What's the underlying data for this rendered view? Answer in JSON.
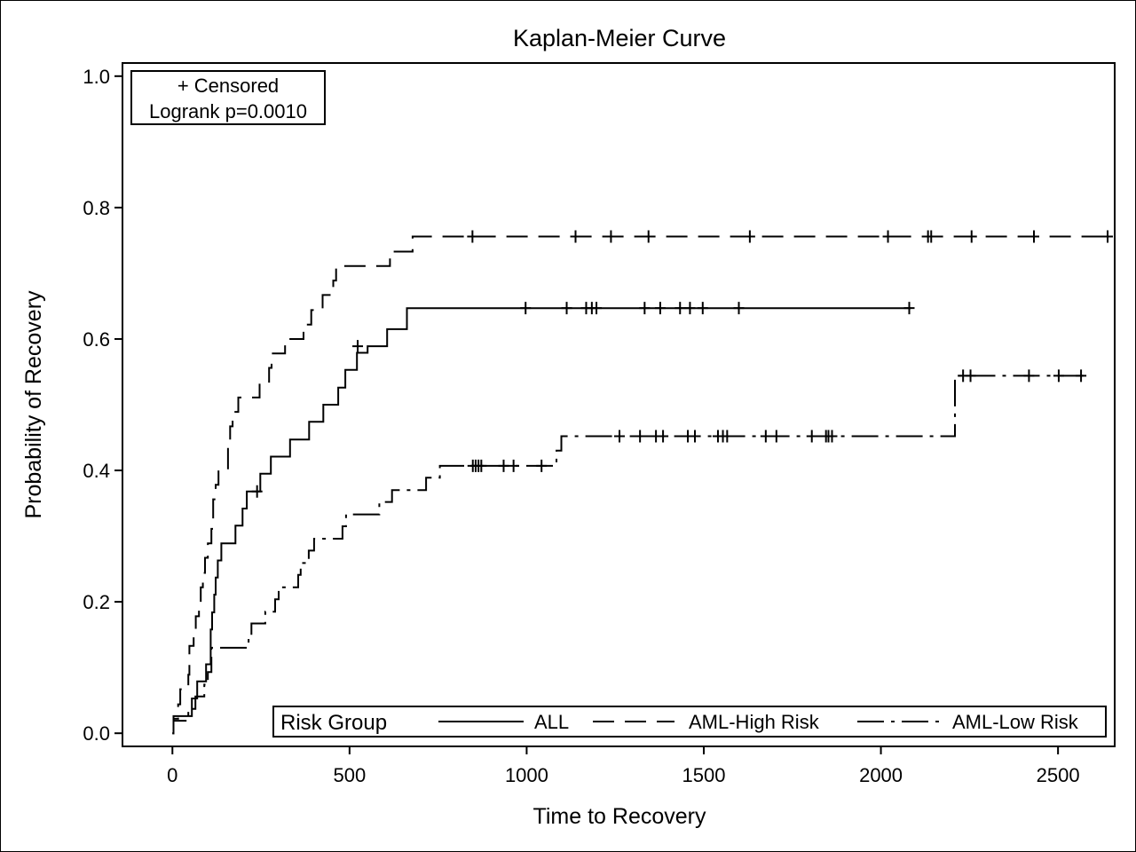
{
  "chart_data": {
    "type": "line",
    "title": "Kaplan-Meier Curve",
    "xlabel": "Time to Recovery",
    "ylabel": "Probability of Recovery",
    "xlim": [
      -141,
      2660
    ],
    "ylim": [
      -0.02,
      1.02
    ],
    "x_ticks": [
      0,
      500,
      1000,
      1500,
      2000,
      2500
    ],
    "y_ticks": [
      0.0,
      0.2,
      0.4,
      0.6,
      0.8,
      1.0
    ],
    "y_tick_labels": [
      "0.0",
      "0.2",
      "0.4",
      "0.6",
      "0.8",
      "1.0"
    ],
    "step": true,
    "grid": false,
    "inset_box": {
      "lines": [
        "+ Censored",
        "Logrank p=0.0010"
      ],
      "placement": "top-left"
    },
    "legend": {
      "title": "Risk Group",
      "placement": "bottom-right"
    },
    "series": [
      {
        "name": "ALL",
        "dash": "solid",
        "color": "#000000",
        "points": [
          [
            0,
            0
          ],
          [
            3,
            0.026
          ],
          [
            50,
            0.026
          ],
          [
            55,
            0.053
          ],
          [
            62,
            0.053
          ],
          [
            70,
            0.079
          ],
          [
            85,
            0.079
          ],
          [
            95,
            0.105
          ],
          [
            100,
            0.105
          ],
          [
            108,
            0.158
          ],
          [
            112,
            0.184
          ],
          [
            118,
            0.211
          ],
          [
            122,
            0.237
          ],
          [
            128,
            0.263
          ],
          [
            138,
            0.289
          ],
          [
            172,
            0.289
          ],
          [
            178,
            0.316
          ],
          [
            192,
            0.316
          ],
          [
            198,
            0.342
          ],
          [
            205,
            0.342
          ],
          [
            210,
            0.368
          ],
          [
            243,
            0.368
          ],
          [
            248,
            0.395
          ],
          [
            272,
            0.395
          ],
          [
            278,
            0.421
          ],
          [
            326,
            0.421
          ],
          [
            332,
            0.447
          ],
          [
            380,
            0.447
          ],
          [
            386,
            0.474
          ],
          [
            420,
            0.474
          ],
          [
            426,
            0.5
          ],
          [
            462,
            0.5
          ],
          [
            468,
            0.526
          ],
          [
            482,
            0.526
          ],
          [
            488,
            0.553
          ],
          [
            515,
            0.553
          ],
          [
            521,
            0.579
          ],
          [
            545,
            0.579
          ],
          [
            551,
            0.589
          ],
          [
            600,
            0.589
          ],
          [
            606,
            0.615
          ],
          [
            656,
            0.615
          ],
          [
            662,
            0.647
          ],
          [
            2085,
            0.647
          ]
        ],
        "censored": [
          [
            239,
            0.368
          ],
          [
            523,
            0.589
          ],
          [
            997,
            0.647
          ],
          [
            1113,
            0.647
          ],
          [
            1168,
            0.647
          ],
          [
            1184,
            0.647
          ],
          [
            1197,
            0.647
          ],
          [
            1333,
            0.647
          ],
          [
            1377,
            0.647
          ],
          [
            1433,
            0.647
          ],
          [
            1461,
            0.647
          ],
          [
            1497,
            0.647
          ],
          [
            1599,
            0.647
          ],
          [
            2080,
            0.647
          ]
        ]
      },
      {
        "name": "AML-High Risk",
        "dash": "long-dash",
        "color": "#000000",
        "points": [
          [
            0,
            0
          ],
          [
            3,
            0.022
          ],
          [
            16,
            0.044
          ],
          [
            22,
            0.067
          ],
          [
            40,
            0.067
          ],
          [
            45,
            0.089
          ],
          [
            48,
            0.133
          ],
          [
            55,
            0.133
          ],
          [
            60,
            0.156
          ],
          [
            66,
            0.178
          ],
          [
            75,
            0.2
          ],
          [
            80,
            0.222
          ],
          [
            86,
            0.244
          ],
          [
            92,
            0.267
          ],
          [
            100,
            0.289
          ],
          [
            110,
            0.311
          ],
          [
            115,
            0.356
          ],
          [
            122,
            0.378
          ],
          [
            130,
            0.4
          ],
          [
            152,
            0.4
          ],
          [
            157,
            0.444
          ],
          [
            163,
            0.467
          ],
          [
            170,
            0.489
          ],
          [
            180,
            0.489
          ],
          [
            186,
            0.511
          ],
          [
            240,
            0.511
          ],
          [
            246,
            0.533
          ],
          [
            268,
            0.533
          ],
          [
            273,
            0.556
          ],
          [
            280,
            0.578
          ],
          [
            310,
            0.578
          ],
          [
            318,
            0.6
          ],
          [
            362,
            0.6
          ],
          [
            370,
            0.622
          ],
          [
            385,
            0.622
          ],
          [
            392,
            0.644
          ],
          [
            418,
            0.644
          ],
          [
            424,
            0.667
          ],
          [
            448,
            0.667
          ],
          [
            454,
            0.689
          ],
          [
            462,
            0.711
          ],
          [
            608,
            0.711
          ],
          [
            614,
            0.733
          ],
          [
            672,
            0.733
          ],
          [
            678,
            0.756
          ],
          [
            2645,
            0.756
          ]
        ],
        "censored": [
          [
            847,
            0.756
          ],
          [
            1138,
            0.756
          ],
          [
            1238,
            0.756
          ],
          [
            1344,
            0.756
          ],
          [
            1630,
            0.756
          ],
          [
            2020,
            0.756
          ],
          [
            2133,
            0.756
          ],
          [
            2142,
            0.756
          ],
          [
            2256,
            0.756
          ],
          [
            2432,
            0.756
          ],
          [
            2640,
            0.756
          ]
        ]
      },
      {
        "name": "AML-Low Risk",
        "dash": "dash-dot",
        "color": "#000000",
        "points": [
          [
            0,
            0
          ],
          [
            3,
            0.019
          ],
          [
            40,
            0.019
          ],
          [
            45,
            0.037
          ],
          [
            60,
            0.037
          ],
          [
            65,
            0.056
          ],
          [
            84,
            0.056
          ],
          [
            90,
            0.074
          ],
          [
            95,
            0.074
          ],
          [
            100,
            0.093
          ],
          [
            110,
            0.13
          ],
          [
            205,
            0.13
          ],
          [
            215,
            0.148
          ],
          [
            223,
            0.167
          ],
          [
            258,
            0.167
          ],
          [
            262,
            0.185
          ],
          [
            286,
            0.185
          ],
          [
            290,
            0.204
          ],
          [
            295,
            0.204
          ],
          [
            300,
            0.222
          ],
          [
            348,
            0.222
          ],
          [
            355,
            0.241
          ],
          [
            362,
            0.259
          ],
          [
            378,
            0.259
          ],
          [
            385,
            0.278
          ],
          [
            400,
            0.296
          ],
          [
            475,
            0.296
          ],
          [
            480,
            0.315
          ],
          [
            490,
            0.333
          ],
          [
            578,
            0.333
          ],
          [
            584,
            0.352
          ],
          [
            614,
            0.352
          ],
          [
            620,
            0.37
          ],
          [
            710,
            0.37
          ],
          [
            716,
            0.389
          ],
          [
            748,
            0.389
          ],
          [
            755,
            0.407
          ],
          [
            1042,
            0.407
          ],
          [
            1080,
            0.407
          ],
          [
            1084,
            0.43
          ],
          [
            1090,
            0.43
          ],
          [
            1098,
            0.452
          ],
          [
            2203,
            0.452
          ],
          [
            2209,
            0.544
          ],
          [
            2572,
            0.544
          ]
        ],
        "censored": [
          [
            848,
            0.407
          ],
          [
            856,
            0.407
          ],
          [
            864,
            0.407
          ],
          [
            872,
            0.407
          ],
          [
            935,
            0.407
          ],
          [
            963,
            0.407
          ],
          [
            1042,
            0.407
          ],
          [
            1262,
            0.452
          ],
          [
            1320,
            0.452
          ],
          [
            1365,
            0.452
          ],
          [
            1385,
            0.452
          ],
          [
            1455,
            0.452
          ],
          [
            1475,
            0.452
          ],
          [
            1540,
            0.452
          ],
          [
            1554,
            0.452
          ],
          [
            1566,
            0.452
          ],
          [
            1675,
            0.452
          ],
          [
            1705,
            0.452
          ],
          [
            1805,
            0.452
          ],
          [
            1845,
            0.452
          ],
          [
            1852,
            0.452
          ],
          [
            1862,
            0.452
          ],
          [
            2232,
            0.544
          ],
          [
            2253,
            0.544
          ],
          [
            2418,
            0.544
          ],
          [
            2502,
            0.544
          ],
          [
            2565,
            0.544
          ]
        ]
      }
    ]
  }
}
